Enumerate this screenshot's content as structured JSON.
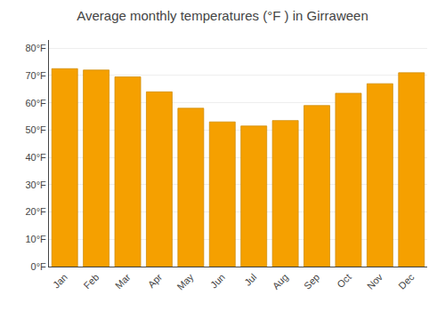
{
  "chart_data": {
    "type": "bar",
    "title": "Average monthly temperatures (°F ) in Girraween",
    "categories": [
      "Jan",
      "Feb",
      "Mar",
      "Apr",
      "May",
      "Jun",
      "Jul",
      "Aug",
      "Sep",
      "Oct",
      "Nov",
      "Dec"
    ],
    "values": [
      72.5,
      72.0,
      69.5,
      64.0,
      58.0,
      53.0,
      51.5,
      53.5,
      59.0,
      63.5,
      67.0,
      71.0
    ],
    "color": "#F5A000",
    "ylim": [
      0,
      83
    ],
    "yticks": [
      {
        "value": 0,
        "label": "0°F"
      },
      {
        "value": 10,
        "label": "10°F"
      },
      {
        "value": 20,
        "label": "20°F"
      },
      {
        "value": 30,
        "label": "30°F"
      },
      {
        "value": 40,
        "label": "40°F"
      },
      {
        "value": 50,
        "label": "50°F"
      },
      {
        "value": 60,
        "label": "60°F"
      },
      {
        "value": 70,
        "label": "70°F"
      },
      {
        "value": 80,
        "label": "80°F"
      }
    ],
    "grid": true
  }
}
